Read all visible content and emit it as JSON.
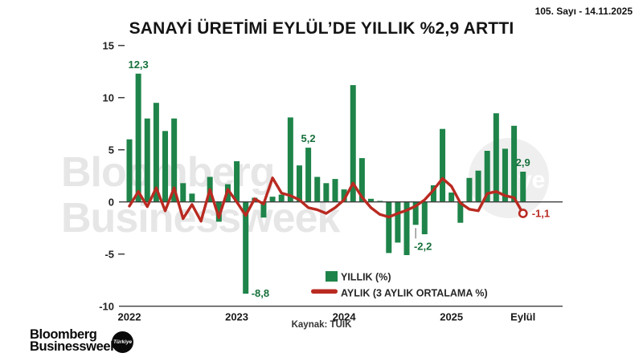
{
  "header": {
    "issue": "105. Sayı - 14.11.2025",
    "title": "SANAYİ ÜRETİMİ EYLÜL’DE YILLIK %2,9 ARTTI"
  },
  "footer": {
    "source": "Kaynak: TÜİK"
  },
  "brand": {
    "line1": "Bloomberg",
    "line2": "Businessweek",
    "circle_label": "Türkiye"
  },
  "watermark": {
    "line1": "Bloomberg",
    "line2": "Businessweek",
    "circle_text": "ye"
  },
  "legend": {
    "bar_label": "YILLIK (%)",
    "line_label": "AYLIK (3 AYLIK ORTALAMA %)"
  },
  "colors": {
    "bar_green": "#1e8449",
    "annotation_green": "#17703b",
    "line_red": "#b92a21",
    "axis": "#3d3d3d",
    "pointer_gray": "#777777",
    "watermark_gray": "#e6e6e6",
    "watermark_circle": "#efefef"
  },
  "chart_data": {
    "type": "bar",
    "title": "SANAYİ ÜRETİMİ EYLÜL’DE YILLIK %2,9 ARTTI",
    "xlabel": "",
    "ylabel": "",
    "ylim": [
      -10,
      15
    ],
    "grid": false,
    "legend_position": "bottom-center",
    "months": [
      "2022-01",
      "2022-02",
      "2022-03",
      "2022-04",
      "2022-05",
      "2022-06",
      "2022-07",
      "2022-08",
      "2022-09",
      "2022-10",
      "2022-11",
      "2022-12",
      "2023-01",
      "2023-02",
      "2023-03",
      "2023-04",
      "2023-05",
      "2023-06",
      "2023-07",
      "2023-08",
      "2023-09",
      "2023-10",
      "2023-11",
      "2023-12",
      "2024-01",
      "2024-02",
      "2024-03",
      "2024-04",
      "2024-05",
      "2024-06",
      "2024-07",
      "2024-08",
      "2024-09",
      "2024-10",
      "2024-11",
      "2024-12",
      "2025-01",
      "2025-02",
      "2025-03",
      "2025-04",
      "2025-05",
      "2025-06",
      "2025-07",
      "2025-08",
      "2025-09"
    ],
    "series": [
      {
        "name": "YILLIK (%)",
        "type": "bar",
        "values": [
          6.0,
          12.3,
          8.0,
          9.5,
          6.8,
          8.0,
          1.8,
          0.8,
          0.0,
          2.4,
          -1.9,
          1.7,
          3.9,
          -8.8,
          0.4,
          -1.5,
          0.5,
          0.7,
          8.1,
          3.5,
          5.2,
          2.4,
          1.8,
          2.2,
          1.2,
          11.2,
          4.2,
          0.3,
          0.1,
          -4.9,
          -3.9,
          -5.1,
          -2.2,
          -3.1,
          1.6,
          7.0,
          0.9,
          -2.0,
          2.3,
          3.0,
          4.9,
          8.5,
          5.1,
          7.3,
          2.9
        ]
      },
      {
        "name": "AYLIK (3 AYLIK ORTALAMA %)",
        "type": "line",
        "values": [
          -0.4,
          1.0,
          -0.45,
          1.35,
          -0.85,
          1.35,
          -1.6,
          -0.25,
          -1.85,
          1.2,
          -1.5,
          1.2,
          0.0,
          -1.3,
          0.3,
          -0.2,
          2.3,
          0.85,
          0.6,
          0.2,
          -0.55,
          -0.75,
          -1.1,
          -0.55,
          0.2,
          1.8,
          0.45,
          -0.55,
          -1.2,
          -1.45,
          -1.1,
          -0.8,
          -0.4,
          0.2,
          1.15,
          2.25,
          1.5,
          -0.1,
          -0.7,
          -0.85,
          0.8,
          1.0,
          0.6,
          0.4,
          -1.1
        ]
      }
    ],
    "yticks": [
      {
        "v": 15,
        "label": "15"
      },
      {
        "v": 10,
        "label": "10"
      },
      {
        "v": 5,
        "label": "5"
      },
      {
        "v": 0,
        "label": "0"
      },
      {
        "v": -5,
        "label": "-5"
      },
      {
        "v": -10,
        "label": "-10"
      }
    ],
    "xticks": [
      {
        "month_index": 0,
        "label": "2022"
      },
      {
        "month_index": 12,
        "label": "2023"
      },
      {
        "month_index": 24,
        "label": "2024"
      },
      {
        "month_index": 36,
        "label": "2025"
      },
      {
        "month_index": 44,
        "label": "Eylül"
      }
    ],
    "annotations": [
      {
        "month_index": 1,
        "series": "bar",
        "text": "12,3",
        "placement": "above"
      },
      {
        "month_index": 13,
        "series": "bar",
        "text": "-8,8",
        "placement": "below-right"
      },
      {
        "month_index": 20,
        "series": "bar",
        "text": "5,2",
        "placement": "above"
      },
      {
        "month_index": 32,
        "series": "bar",
        "text": "-2,2",
        "placement": "below-pointer"
      },
      {
        "month_index": 44,
        "series": "bar",
        "text": "2,9",
        "placement": "above"
      },
      {
        "month_index": 44,
        "series": "line",
        "text": "-1,1",
        "placement": "right-of-point"
      }
    ],
    "line_end_marker": "open-circle"
  }
}
